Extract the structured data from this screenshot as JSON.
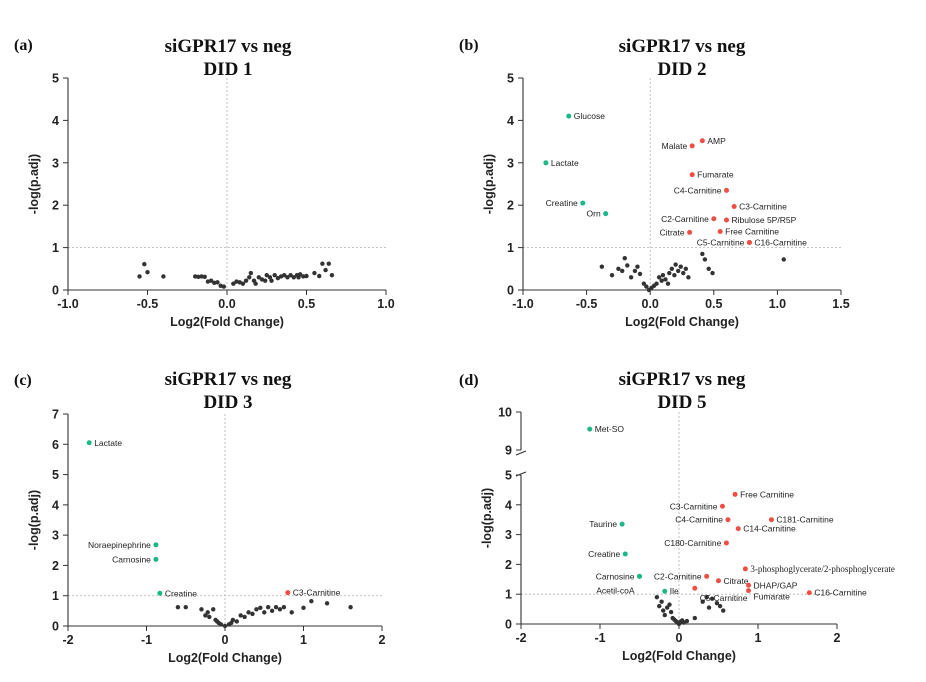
{
  "colors": {
    "down": "#1cb88a",
    "up": "#ef4f43",
    "ns": "#333333"
  },
  "chart_data": [
    {
      "id": "a",
      "type": "scatter",
      "letter": "(a)",
      "title": [
        "siGPR17 vs neg",
        "DID 1"
      ],
      "xlabel": "Log2(Fold Change)",
      "ylabel": "-log(p.adj)",
      "xlim": [
        -1.0,
        1.0
      ],
      "ylim": [
        0,
        5
      ],
      "xticks": [
        -1.0,
        -0.5,
        0.0,
        0.5,
        1.0
      ],
      "xtick_labels": [
        "-1.0",
        "-0.5",
        "0.0",
        "0.5",
        "1.0"
      ],
      "yticks": [
        0,
        1,
        2,
        3,
        4,
        5
      ],
      "threshold_y": 1,
      "ref_x": 0,
      "labeled_points": [],
      "other_points": [
        [
          -0.55,
          0.32
        ],
        [
          -0.52,
          0.61
        ],
        [
          -0.5,
          0.42
        ],
        [
          -0.4,
          0.32
        ],
        [
          -0.2,
          0.32
        ],
        [
          -0.18,
          0.31
        ],
        [
          -0.16,
          0.32
        ],
        [
          -0.14,
          0.31
        ],
        [
          -0.12,
          0.2
        ],
        [
          -0.1,
          0.22
        ],
        [
          -0.08,
          0.17
        ],
        [
          -0.06,
          0.18
        ],
        [
          -0.04,
          0.1
        ],
        [
          -0.02,
          0.08
        ],
        [
          0.04,
          0.15
        ],
        [
          0.06,
          0.2
        ],
        [
          0.08,
          0.18
        ],
        [
          0.1,
          0.15
        ],
        [
          0.12,
          0.22
        ],
        [
          0.14,
          0.3
        ],
        [
          0.15,
          0.4
        ],
        [
          0.17,
          0.22
        ],
        [
          0.18,
          0.15
        ],
        [
          0.2,
          0.3
        ],
        [
          0.22,
          0.25
        ],
        [
          0.24,
          0.22
        ],
        [
          0.25,
          0.35
        ],
        [
          0.27,
          0.3
        ],
        [
          0.28,
          0.22
        ],
        [
          0.3,
          0.35
        ],
        [
          0.32,
          0.28
        ],
        [
          0.34,
          0.32
        ],
        [
          0.36,
          0.35
        ],
        [
          0.38,
          0.3
        ],
        [
          0.4,
          0.35
        ],
        [
          0.42,
          0.3
        ],
        [
          0.44,
          0.35
        ],
        [
          0.45,
          0.3
        ],
        [
          0.46,
          0.37
        ],
        [
          0.48,
          0.32
        ],
        [
          0.5,
          0.33
        ],
        [
          0.55,
          0.4
        ],
        [
          0.58,
          0.33
        ],
        [
          0.6,
          0.62
        ],
        [
          0.62,
          0.47
        ],
        [
          0.64,
          0.62
        ],
        [
          0.66,
          0.35
        ]
      ]
    },
    {
      "id": "b",
      "type": "scatter",
      "letter": "(b)",
      "title": [
        "siGPR17 vs neg",
        "DID 2"
      ],
      "xlabel": "Log2(Fold Change)",
      "ylabel": "-log(p.adj)",
      "xlim": [
        -1.0,
        1.5
      ],
      "ylim": [
        0,
        5
      ],
      "xticks": [
        -1.0,
        -0.5,
        0.0,
        0.5,
        1.0,
        1.5
      ],
      "xtick_labels": [
        "-1.0",
        "-0.5",
        "0.0",
        "0.5",
        "1.0",
        "1.5"
      ],
      "yticks": [
        0,
        1,
        2,
        3,
        4,
        5
      ],
      "threshold_y": 1,
      "ref_x": 0,
      "labeled_points": [
        {
          "label": "Glucose",
          "x": -0.64,
          "y": 4.1,
          "group": "down",
          "anchor": "start"
        },
        {
          "label": "Lactate",
          "x": -0.82,
          "y": 3.0,
          "group": "down",
          "anchor": "start"
        },
        {
          "label": "Creatine",
          "x": -0.53,
          "y": 2.05,
          "group": "down",
          "anchor": "end"
        },
        {
          "label": "Orn",
          "x": -0.35,
          "y": 1.8,
          "group": "down",
          "anchor": "end"
        },
        {
          "label": "AMP",
          "x": 0.41,
          "y": 3.52,
          "group": "up",
          "anchor": "start"
        },
        {
          "label": "Malate",
          "x": 0.33,
          "y": 3.4,
          "group": "up",
          "anchor": "end"
        },
        {
          "label": "Fumarate",
          "x": 0.33,
          "y": 2.72,
          "group": "up",
          "anchor": "start"
        },
        {
          "label": "C4-Carnitine",
          "x": 0.6,
          "y": 2.35,
          "group": "up",
          "anchor": "end"
        },
        {
          "label": "C3-Carnitine",
          "x": 0.66,
          "y": 1.97,
          "group": "up",
          "anchor": "start"
        },
        {
          "label": "C2-Carnitine",
          "x": 0.5,
          "y": 1.68,
          "group": "up",
          "anchor": "end"
        },
        {
          "label": "Ribulose 5P/R5P",
          "x": 0.6,
          "y": 1.65,
          "group": "up",
          "anchor": "start"
        },
        {
          "label": "Citrate",
          "x": 0.31,
          "y": 1.36,
          "group": "up",
          "anchor": "end"
        },
        {
          "label": "Free Carnitine",
          "x": 0.55,
          "y": 1.38,
          "group": "up",
          "anchor": "start"
        },
        {
          "label": "C5-Carnitine",
          "x": 0.78,
          "y": 1.12,
          "group": "up",
          "anchor": "end"
        },
        {
          "label": "C16-Carnitine",
          "x": 0.78,
          "y": 1.12,
          "group": "up",
          "anchor": "start"
        }
      ],
      "other_points": [
        [
          -0.38,
          0.55
        ],
        [
          -0.3,
          0.35
        ],
        [
          -0.25,
          0.5
        ],
        [
          -0.22,
          0.45
        ],
        [
          -0.2,
          0.75
        ],
        [
          -0.18,
          0.58
        ],
        [
          -0.15,
          0.3
        ],
        [
          -0.12,
          0.45
        ],
        [
          -0.1,
          0.55
        ],
        [
          -0.08,
          0.38
        ],
        [
          -0.05,
          0.15
        ],
        [
          -0.03,
          0.08
        ],
        [
          -0.01,
          0.0
        ],
        [
          0.01,
          0.05
        ],
        [
          0.03,
          0.1
        ],
        [
          0.05,
          0.15
        ],
        [
          0.07,
          0.3
        ],
        [
          0.09,
          0.22
        ],
        [
          0.1,
          0.35
        ],
        [
          0.12,
          0.25
        ],
        [
          0.14,
          0.15
        ],
        [
          0.15,
          0.4
        ],
        [
          0.17,
          0.5
        ],
        [
          0.19,
          0.35
        ],
        [
          0.2,
          0.6
        ],
        [
          0.22,
          0.45
        ],
        [
          0.24,
          0.55
        ],
        [
          0.26,
          0.4
        ],
        [
          0.28,
          0.5
        ],
        [
          0.3,
          0.3
        ],
        [
          0.41,
          0.85
        ],
        [
          0.43,
          0.72
        ],
        [
          0.46,
          0.5
        ],
        [
          0.49,
          0.4
        ],
        [
          1.05,
          0.72
        ]
      ]
    },
    {
      "id": "c",
      "type": "scatter",
      "letter": "(c)",
      "title": [
        "siGPR17 vs neg",
        "DID 3"
      ],
      "xlabel": "Log2(Fold Change)",
      "ylabel": "-log(p.adj)",
      "xlim": [
        -2,
        2
      ],
      "ylim": [
        0,
        7
      ],
      "xticks": [
        -2,
        -1,
        0,
        1,
        2
      ],
      "xtick_labels": [
        "-2",
        "-1",
        "0",
        "1",
        "2"
      ],
      "yticks": [
        0,
        1,
        2,
        3,
        4,
        5,
        6,
        7
      ],
      "threshold_y": 1,
      "ref_x": 0,
      "labeled_points": [
        {
          "label": "Lactate",
          "x": -1.73,
          "y": 6.05,
          "group": "down",
          "anchor": "start"
        },
        {
          "label": "Noraepinephrine",
          "x": -0.88,
          "y": 2.68,
          "group": "down",
          "anchor": "end"
        },
        {
          "label": "Carnosine",
          "x": -0.88,
          "y": 2.2,
          "group": "down",
          "anchor": "end"
        },
        {
          "label": "Creatine",
          "x": -0.83,
          "y": 1.08,
          "group": "down",
          "anchor": "start"
        },
        {
          "label": "C3-Carnitine",
          "x": 0.8,
          "y": 1.1,
          "group": "up",
          "anchor": "start"
        }
      ],
      "other_points": [
        [
          -0.6,
          0.62
        ],
        [
          -0.5,
          0.62
        ],
        [
          -0.3,
          0.55
        ],
        [
          -0.25,
          0.35
        ],
        [
          -0.22,
          0.45
        ],
        [
          -0.2,
          0.3
        ],
        [
          -0.15,
          0.55
        ],
        [
          -0.12,
          0.2
        ],
        [
          -0.1,
          0.15
        ],
        [
          -0.08,
          0.1
        ],
        [
          -0.05,
          0.05
        ],
        [
          0.0,
          0.0
        ],
        [
          0.05,
          0.05
        ],
        [
          0.08,
          0.1
        ],
        [
          0.1,
          0.2
        ],
        [
          0.15,
          0.15
        ],
        [
          0.2,
          0.35
        ],
        [
          0.25,
          0.3
        ],
        [
          0.3,
          0.45
        ],
        [
          0.35,
          0.4
        ],
        [
          0.4,
          0.55
        ],
        [
          0.45,
          0.6
        ],
        [
          0.5,
          0.45
        ],
        [
          0.55,
          0.62
        ],
        [
          0.6,
          0.5
        ],
        [
          0.65,
          0.62
        ],
        [
          0.7,
          0.55
        ],
        [
          0.75,
          0.62
        ],
        [
          0.85,
          0.45
        ],
        [
          1.0,
          0.6
        ],
        [
          1.1,
          0.82
        ],
        [
          1.3,
          0.75
        ],
        [
          1.6,
          0.62
        ]
      ]
    },
    {
      "id": "d",
      "type": "scatter",
      "letter": "(d)",
      "title": [
        "siGPR17 vs neg",
        "DID 5"
      ],
      "xlabel": "Log2(Fold Change)",
      "ylabel": "-log(p.adj)",
      "xlim": [
        -2,
        2
      ],
      "ylim": [
        0,
        10
      ],
      "axis_break": {
        "from": 5,
        "to": 9
      },
      "xticks": [
        -2,
        -1,
        0,
        1,
        2
      ],
      "xtick_labels": [
        "-2",
        "-1",
        "0",
        "1",
        "2"
      ],
      "yticks": [
        0,
        1,
        2,
        3,
        4,
        5,
        9,
        10
      ],
      "threshold_y": 1,
      "ref_x": 0,
      "labeled_points": [
        {
          "label": "Met-SO",
          "x": -1.13,
          "y": 9.55,
          "group": "down",
          "anchor": "start"
        },
        {
          "label": "Taurine",
          "x": -0.72,
          "y": 3.35,
          "group": "down",
          "anchor": "end"
        },
        {
          "label": "Creatine",
          "x": -0.68,
          "y": 2.35,
          "group": "down",
          "anchor": "end"
        },
        {
          "label": "Carnosine",
          "x": -0.5,
          "y": 1.6,
          "group": "down",
          "anchor": "end"
        },
        {
          "label": "Acetil-coA",
          "x": -0.5,
          "y": 1.6,
          "group": "down",
          "anchor": "end",
          "dy": 14
        },
        {
          "label": "Ile",
          "x": -0.18,
          "y": 1.1,
          "group": "down",
          "anchor": "start"
        },
        {
          "label": "Free Carnitine",
          "x": 0.71,
          "y": 4.35,
          "group": "up",
          "anchor": "start"
        },
        {
          "label": "C3-Carnitine",
          "x": 0.55,
          "y": 3.95,
          "group": "up",
          "anchor": "end"
        },
        {
          "label": "C181-Carnitine",
          "x": 1.17,
          "y": 3.5,
          "group": "up",
          "anchor": "start"
        },
        {
          "label": "C4-Carnitine",
          "x": 0.62,
          "y": 3.5,
          "group": "up",
          "anchor": "end"
        },
        {
          "label": "C14-Carnitine",
          "x": 0.75,
          "y": 3.2,
          "group": "up",
          "anchor": "start"
        },
        {
          "label": "C180-Carnitine",
          "x": 0.6,
          "y": 2.72,
          "group": "up",
          "anchor": "end"
        },
        {
          "label": "3-phosphoglycerate/2-phosphoglycerate",
          "x": 0.84,
          "y": 1.85,
          "group": "up",
          "anchor": "start",
          "serif": true
        },
        {
          "label": "C2-Carnitine",
          "x": 0.35,
          "y": 1.6,
          "group": "up",
          "anchor": "end"
        },
        {
          "label": "Citrate",
          "x": 0.5,
          "y": 1.45,
          "group": "up",
          "anchor": "start"
        },
        {
          "label": "DHAP/GAP",
          "x": 0.88,
          "y": 1.3,
          "group": "up",
          "anchor": "start"
        },
        {
          "label": "C5-Carnitine",
          "x": 0.2,
          "y": 1.2,
          "group": "up",
          "anchor": "start",
          "dy": 10
        },
        {
          "label": "Fumarate",
          "x": 0.88,
          "y": 1.12,
          "group": "up",
          "anchor": "start",
          "dy": 6
        },
        {
          "label": "C16-Carnitine",
          "x": 1.65,
          "y": 1.05,
          "group": "up",
          "anchor": "start"
        }
      ],
      "other_points": [
        [
          -0.28,
          0.9
        ],
        [
          -0.25,
          0.6
        ],
        [
          -0.22,
          0.75
        ],
        [
          -0.2,
          0.45
        ],
        [
          -0.18,
          0.3
        ],
        [
          -0.15,
          0.55
        ],
        [
          -0.12,
          0.65
        ],
        [
          -0.1,
          0.4
        ],
        [
          -0.08,
          0.2
        ],
        [
          -0.06,
          0.15
        ],
        [
          -0.04,
          0.1
        ],
        [
          -0.02,
          0.05
        ],
        [
          0.0,
          0.0
        ],
        [
          0.02,
          0.08
        ],
        [
          0.04,
          0.12
        ],
        [
          0.06,
          0.05
        ],
        [
          0.1,
          0.1
        ],
        [
          0.2,
          0.2
        ],
        [
          0.3,
          0.75
        ],
        [
          0.35,
          0.9
        ],
        [
          0.38,
          0.55
        ],
        [
          0.42,
          0.85
        ],
        [
          0.48,
          0.7
        ],
        [
          0.52,
          0.6
        ],
        [
          0.56,
          0.45
        ]
      ]
    }
  ]
}
